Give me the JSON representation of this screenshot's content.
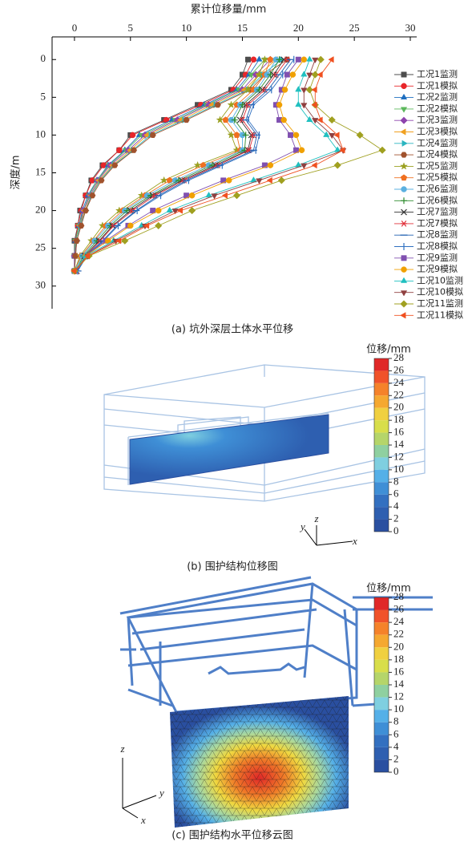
{
  "chart_data": {
    "type": "line",
    "caption": "(a) 坑外深层土体水平位移",
    "x_label": "累计位移量/mm",
    "y_label": "深度/m",
    "xlim": [
      -2,
      30
    ],
    "xticks": [
      0,
      5,
      10,
      15,
      20,
      25,
      30
    ],
    "ylim": [
      -3,
      33
    ],
    "yticks": [
      0,
      5,
      10,
      15,
      20,
      25,
      30
    ],
    "y_inverted": true,
    "legend": "right",
    "depths": [
      0,
      2,
      4,
      6,
      8,
      10,
      12,
      14,
      16,
      18,
      20,
      22,
      24,
      26,
      28
    ],
    "series": [
      {
        "name": "工况1监测",
        "color": "#4d4d4d",
        "marker": "square",
        "values": [
          15.5,
          15,
          14,
          11,
          8,
          5,
          4,
          2.5,
          1.5,
          1,
          0.5,
          0.3,
          0,
          0,
          0
        ]
      },
      {
        "name": "工况1模拟",
        "color": "#e8262a",
        "marker": "circle",
        "values": [
          16,
          15.3,
          14.2,
          11.3,
          8.2,
          5.2,
          4,
          2.6,
          1.6,
          1,
          0.6,
          0.3,
          0.1,
          0,
          0
        ]
      },
      {
        "name": "工况2监测",
        "color": "#1f6fc0",
        "marker": "triangle",
        "values": [
          16.5,
          15.6,
          14.5,
          11.6,
          8.7,
          5.8,
          4.5,
          3,
          2,
          1.2,
          0.7,
          0.4,
          0.1,
          0,
          0
        ]
      },
      {
        "name": "工况2模拟",
        "color": "#5cb85c",
        "marker": "triangle-down",
        "values": [
          17,
          15.8,
          14.7,
          11.8,
          9,
          6,
          4.6,
          3.1,
          2,
          1.3,
          0.8,
          0.4,
          0.1,
          0,
          0
        ]
      },
      {
        "name": "工况3监测",
        "color": "#8e44ad",
        "marker": "diamond",
        "values": [
          17.5,
          16.2,
          15,
          12,
          9.2,
          6.3,
          4.8,
          3.2,
          2.1,
          1.4,
          0.8,
          0.5,
          0.2,
          0,
          0
        ]
      },
      {
        "name": "工况3模拟",
        "color": "#f0a020",
        "marker": "triangle-left",
        "values": [
          18,
          16.5,
          15.2,
          12.3,
          9.5,
          6.5,
          5,
          3.4,
          2.2,
          1.5,
          0.9,
          0.5,
          0.2,
          0.1,
          0
        ]
      },
      {
        "name": "工况4监测",
        "color": "#2bb5c0",
        "marker": "triangle-right",
        "values": [
          18.5,
          16.8,
          15.5,
          12.6,
          9.8,
          6.8,
          5.2,
          3.5,
          2.3,
          1.5,
          1,
          0.5,
          0.2,
          0.1,
          0
        ]
      },
      {
        "name": "工况4模拟",
        "color": "#a0522d",
        "marker": "hexagon",
        "values": [
          19,
          17,
          15.7,
          12.8,
          10,
          7,
          5.3,
          3.6,
          2.4,
          1.6,
          1,
          0.6,
          0.2,
          0.1,
          0
        ]
      },
      {
        "name": "工况5监测",
        "color": "#9aa020",
        "marker": "star",
        "values": [
          17,
          16.5,
          15.5,
          14,
          13,
          14,
          14.5,
          11,
          8,
          6,
          4,
          2.5,
          1.5,
          0.5,
          0
        ]
      },
      {
        "name": "工况5模拟",
        "color": "#f07020",
        "marker": "pentagon",
        "values": [
          17.5,
          17,
          16,
          14.5,
          13.5,
          14.5,
          14.8,
          11.5,
          8.5,
          6.3,
          4.3,
          2.8,
          1.7,
          0.6,
          0
        ]
      },
      {
        "name": "工况6监测",
        "color": "#5bb0e0",
        "marker": "circle",
        "values": [
          18,
          17.2,
          16.3,
          14.8,
          14,
          15,
          15,
          12,
          9,
          6.5,
          4.5,
          3,
          1.8,
          0.7,
          0
        ]
      },
      {
        "name": "工况6模拟",
        "color": "#2e8b2e",
        "marker": "plus",
        "values": [
          18.3,
          17.5,
          16.5,
          15,
          14.3,
          15.3,
          15.2,
          12.3,
          9.3,
          6.8,
          4.7,
          3.2,
          2,
          0.8,
          0.1
        ]
      },
      {
        "name": "工况7监测",
        "color": "#333333",
        "marker": "x",
        "values": [
          18.7,
          17.8,
          16.8,
          15.3,
          14.8,
          15.8,
          15.5,
          12.6,
          9.6,
          7,
          5,
          3.4,
          2.2,
          0.9,
          0.2
        ]
      },
      {
        "name": "工况7模拟",
        "color": "#e0303a",
        "marker": "asterisk",
        "values": [
          19,
          18,
          17,
          15.5,
          15,
          16,
          15.6,
          12.8,
          9.8,
          7.2,
          5.2,
          3.5,
          2.3,
          1,
          0.2
        ]
      },
      {
        "name": "工况8监测",
        "color": "#2060b0",
        "marker": "hline",
        "values": [
          19.3,
          18.3,
          17.3,
          15.8,
          15.3,
          16.3,
          16,
          13,
          10,
          7.5,
          5.5,
          3.8,
          2.5,
          1,
          0.3
        ]
      },
      {
        "name": "工况8模拟",
        "color": "#3070c0",
        "marker": "vline",
        "values": [
          19.6,
          18.6,
          17.6,
          16,
          15.5,
          16.5,
          16.2,
          13.2,
          10.2,
          7.7,
          5.6,
          3.9,
          2.6,
          1.1,
          0.3
        ]
      },
      {
        "name": "工况9监测",
        "color": "#8050b0",
        "marker": "square",
        "values": [
          20,
          19,
          18.5,
          18,
          18.3,
          19.3,
          19.8,
          17,
          13.3,
          10,
          7,
          4.8,
          2.8,
          1,
          0
        ]
      },
      {
        "name": "工况9模拟",
        "color": "#f0a000",
        "marker": "circle",
        "values": [
          20.5,
          19.5,
          18.8,
          18.3,
          18.7,
          19.8,
          20.3,
          17.5,
          13.8,
          10.5,
          7.5,
          5,
          3,
          1,
          0
        ]
      },
      {
        "name": "工况10监测",
        "color": "#20c0c0",
        "marker": "triangle",
        "values": [
          21,
          20.5,
          20,
          20,
          21,
          22.5,
          23.5,
          20,
          16,
          12,
          8.5,
          6,
          3.5,
          1,
          0
        ]
      },
      {
        "name": "工况10模拟",
        "color": "#904040",
        "marker": "triangle-down",
        "values": [
          21.5,
          21,
          20.5,
          20.5,
          21.5,
          23,
          24,
          20.5,
          16.5,
          12.5,
          9,
          6.3,
          3.7,
          1.2,
          0
        ]
      },
      {
        "name": "工况11监测",
        "color": "#a0a020",
        "marker": "diamond",
        "values": [
          22,
          21.5,
          21,
          21.5,
          23,
          25.5,
          27.5,
          23.5,
          18.5,
          14.5,
          10.5,
          7.5,
          4.5,
          1.3,
          0
        ]
      },
      {
        "name": "工况11模拟",
        "color": "#f05020",
        "marker": "triangle-left",
        "values": [
          23,
          22,
          21.5,
          21.5,
          22,
          23.5,
          24,
          21.5,
          17.5,
          13.5,
          9.5,
          6.5,
          4,
          1.2,
          0
        ]
      }
    ]
  },
  "panel_b": {
    "caption": "(b) 围护结构位移图",
    "colorbar": {
      "title": "位移/mm",
      "ticks": [
        28,
        26,
        24,
        22,
        20,
        18,
        16,
        14,
        12,
        10,
        8,
        6,
        4,
        2,
        0
      ]
    },
    "axes": {
      "x": "x",
      "y": "y",
      "z": "z"
    }
  },
  "panel_c": {
    "caption": "(c) 围护结构水平位移云图",
    "colorbar": {
      "title": "位移/mm",
      "ticks": [
        28,
        26,
        24,
        22,
        20,
        18,
        16,
        14,
        12,
        10,
        8,
        6,
        4,
        2,
        0
      ]
    },
    "axes": {
      "x": "x",
      "y": "y",
      "z": "z"
    }
  }
}
